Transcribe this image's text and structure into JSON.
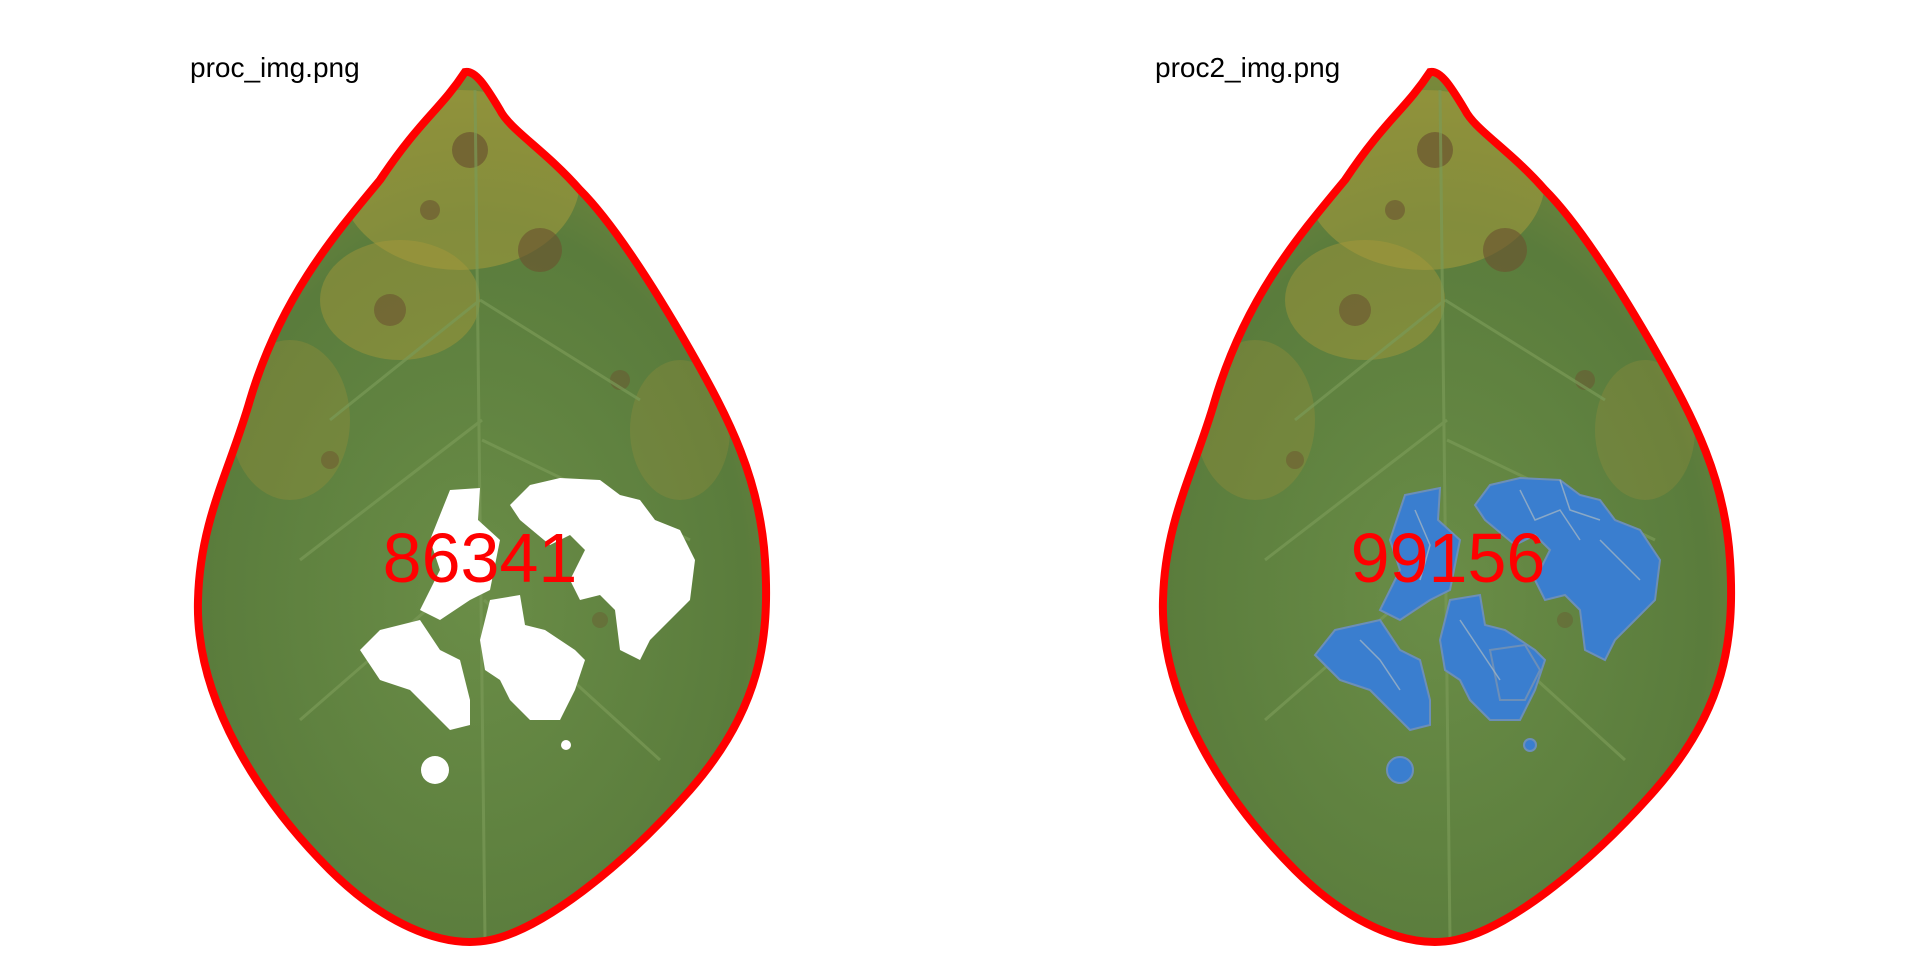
{
  "panels": [
    {
      "title": "proc_img.png",
      "count": "86341",
      "lesion_fill": "#ffffff",
      "lesion_style": "masked"
    },
    {
      "title": "proc2_img.png",
      "count": "99156",
      "lesion_fill": "#3a7ecf",
      "lesion_style": "highlighted"
    }
  ],
  "colors": {
    "outline": "#ff0000",
    "label": "#ff0000",
    "leaf_green": "#5d7f3f",
    "leaf_yellow": "#a89a3a",
    "spot_brown": "#6b5430"
  }
}
